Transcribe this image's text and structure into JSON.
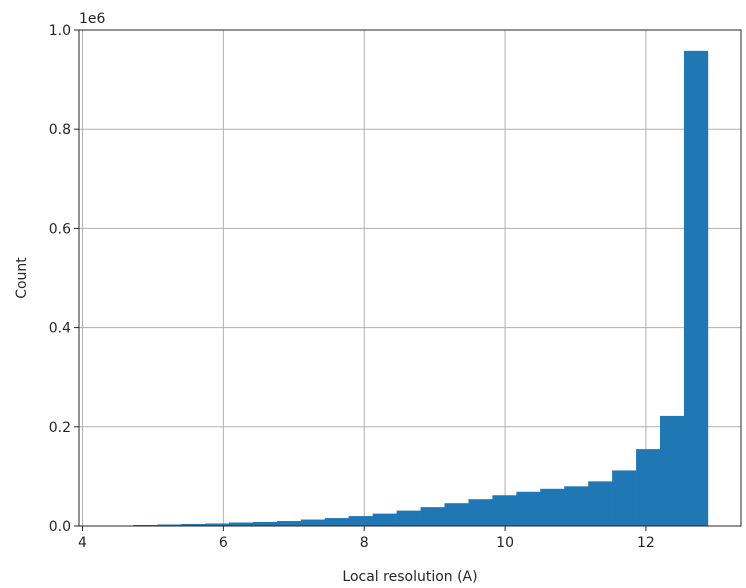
{
  "chart_data": {
    "type": "bar",
    "xlabel": "Local resolution (A)",
    "ylabel": "Count",
    "y_offset_label": "1e6",
    "xlim": [
      3.95,
      13.35
    ],
    "ylim": [
      0,
      1.0
    ],
    "x_ticks": [
      4,
      6,
      8,
      10,
      12
    ],
    "x_tick_labels": [
      "4",
      "6",
      "8",
      "10",
      "12"
    ],
    "y_ticks": [
      0.0,
      0.2,
      0.4,
      0.6,
      0.8,
      1.0
    ],
    "y_tick_labels": [
      "0.0",
      "0.2",
      "0.4",
      "0.6",
      "0.8",
      "1.0"
    ],
    "grid": true,
    "bar_color": "#1f77b4",
    "bin_edges": [
      4.72,
      5.06,
      5.4,
      5.74,
      6.08,
      6.42,
      6.76,
      7.1,
      7.44,
      7.78,
      8.12,
      8.46,
      8.8,
      9.14,
      9.48,
      9.82,
      10.16,
      10.5,
      10.84,
      11.18,
      11.52,
      11.86,
      12.2,
      12.54,
      12.88
    ],
    "values": [
      0.002,
      0.003,
      0.004,
      0.005,
      0.007,
      0.008,
      0.01,
      0.013,
      0.016,
      0.02,
      0.025,
      0.031,
      0.038,
      0.046,
      0.054,
      0.062,
      0.069,
      0.075,
      0.08,
      0.09,
      0.112,
      0.155,
      0.222,
      0.958
    ]
  }
}
